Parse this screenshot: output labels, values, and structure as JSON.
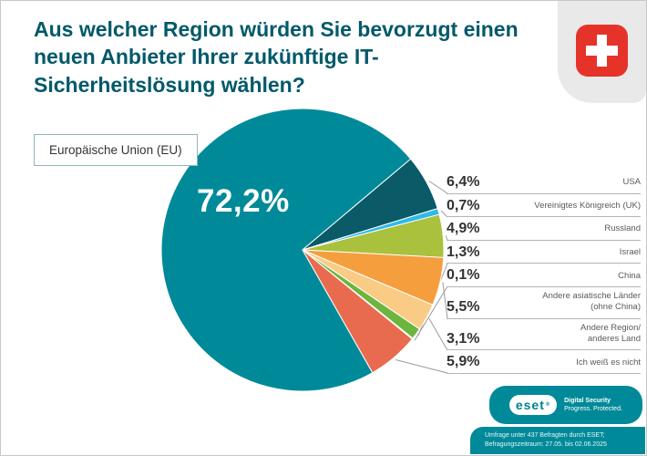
{
  "colors": {
    "accent_teal": "#008a99",
    "title_text": "#00596a",
    "flag_red": "#e63329",
    "leader_line": "#9b9b9b"
  },
  "icons": {
    "flag": "swiss-flag-icon",
    "logo": "eset-logo"
  },
  "chart_data": {
    "type": "pie",
    "title": "Aus welcher Region würden Sie bevorzugt einen neuen Anbieter Ihrer zukünftige IT-Sicherheitslösung wählen?",
    "unit": "%",
    "legend_position": "right",
    "start_angle_deg": -209.7,
    "render_order": [
      0,
      1,
      2,
      3,
      6,
      7,
      4,
      5,
      8
    ],
    "slices": [
      {
        "label": "Europäische Union (EU)",
        "value": 72.2,
        "display": "72,2%",
        "color": "#008a99"
      },
      {
        "label": "USA",
        "value": 6.4,
        "display": "6,4%",
        "color": "#0a5a68"
      },
      {
        "label": "Vereinigtes Königreich (UK)",
        "value": 0.7,
        "display": "0,7%",
        "color": "#2fb9e9"
      },
      {
        "label": "Russland",
        "value": 4.9,
        "display": "4,9%",
        "color": "#a9c13d"
      },
      {
        "label": "Israel",
        "value": 1.3,
        "display": "1,3%",
        "color": "#6cb63f"
      },
      {
        "label": "China",
        "value": 0.1,
        "display": "0,1%",
        "color": "#ffffff"
      },
      {
        "label": "Andere asiatische Länder\n(ohne China)",
        "value": 5.5,
        "display": "5,5%",
        "color": "#f59e3e"
      },
      {
        "label": "Andere Region/\nanderes Land",
        "value": 3.1,
        "display": "3,1%",
        "color": "#f9cb85"
      },
      {
        "label": "Ich weiß es nicht",
        "value": 5.9,
        "display": "5,9%",
        "color": "#e96b4f"
      }
    ]
  },
  "footer": {
    "logo_text": "eset",
    "logo_reg": "®",
    "logo_tagline1": "Digital Security",
    "logo_tagline2": "Progress. Protected.",
    "source_line1": "Umfrage unter 437 Befragten durch ESET;",
    "source_line2": "Befragungszeitraum: 27.05. bis 02.06.2025"
  }
}
